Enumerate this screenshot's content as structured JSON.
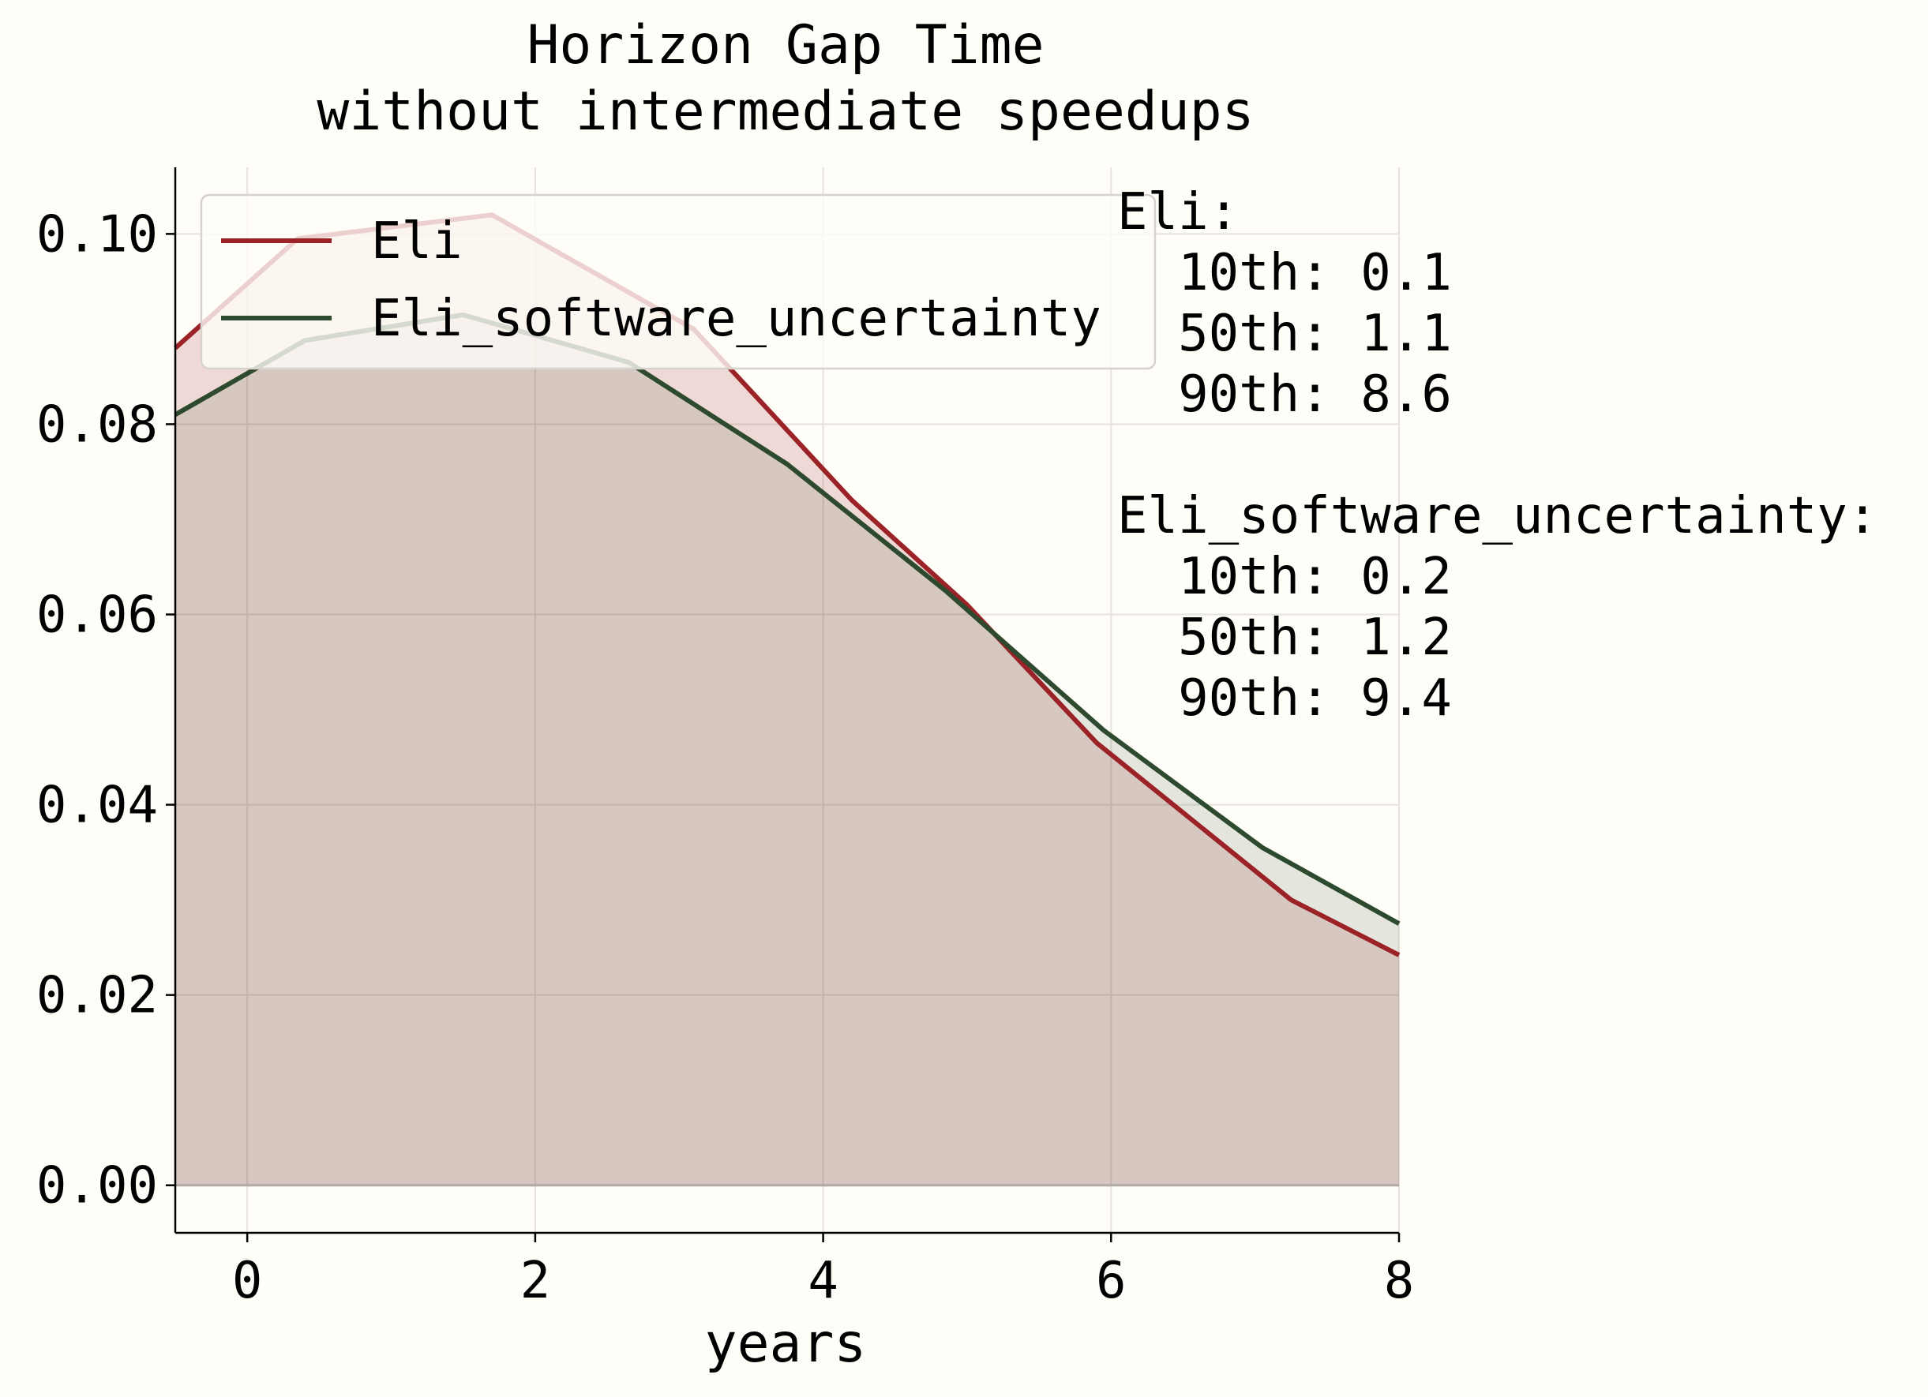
{
  "chart_data": {
    "type": "area",
    "title": "Horizon Gap Time",
    "subtitle": "without intermediate speedups",
    "xlabel": "years",
    "ylabel": "",
    "xlim": [
      -0.5,
      8
    ],
    "ylim": [
      -0.005,
      0.107
    ],
    "xticks": [
      "0",
      "2",
      "4",
      "6",
      "8"
    ],
    "yticks": [
      "0.00",
      "0.02",
      "0.04",
      "0.06",
      "0.08",
      "0.10"
    ],
    "grid": true,
    "legend_position": "top-left",
    "series": [
      {
        "name": "Eli",
        "color": "#9b2226",
        "x": [
          -0.5,
          0.35,
          1.7,
          3.1,
          4.2,
          5.0,
          5.9,
          7.25,
          8.0
        ],
        "y": [
          0.088,
          0.0995,
          0.102,
          0.09,
          0.072,
          0.061,
          0.0465,
          0.03,
          0.0242
        ]
      },
      {
        "name": "Eli_software_uncertainty",
        "color": "#2e4a2e",
        "x": [
          -0.5,
          0.4,
          1.5,
          2.65,
          3.75,
          4.85,
          5.95,
          7.05,
          8.0
        ],
        "y": [
          0.081,
          0.0888,
          0.0915,
          0.0865,
          0.0758,
          0.0625,
          0.0478,
          0.0355,
          0.0275
        ]
      }
    ],
    "annotation": {
      "lines": [
        "Eli:",
        "  10th: 0.1",
        "  50th: 1.1",
        "  90th: 8.6",
        "",
        "Eli_software_uncertainty:",
        "  10th: 0.2",
        "  50th: 1.2",
        "  90th: 9.4"
      ]
    }
  }
}
